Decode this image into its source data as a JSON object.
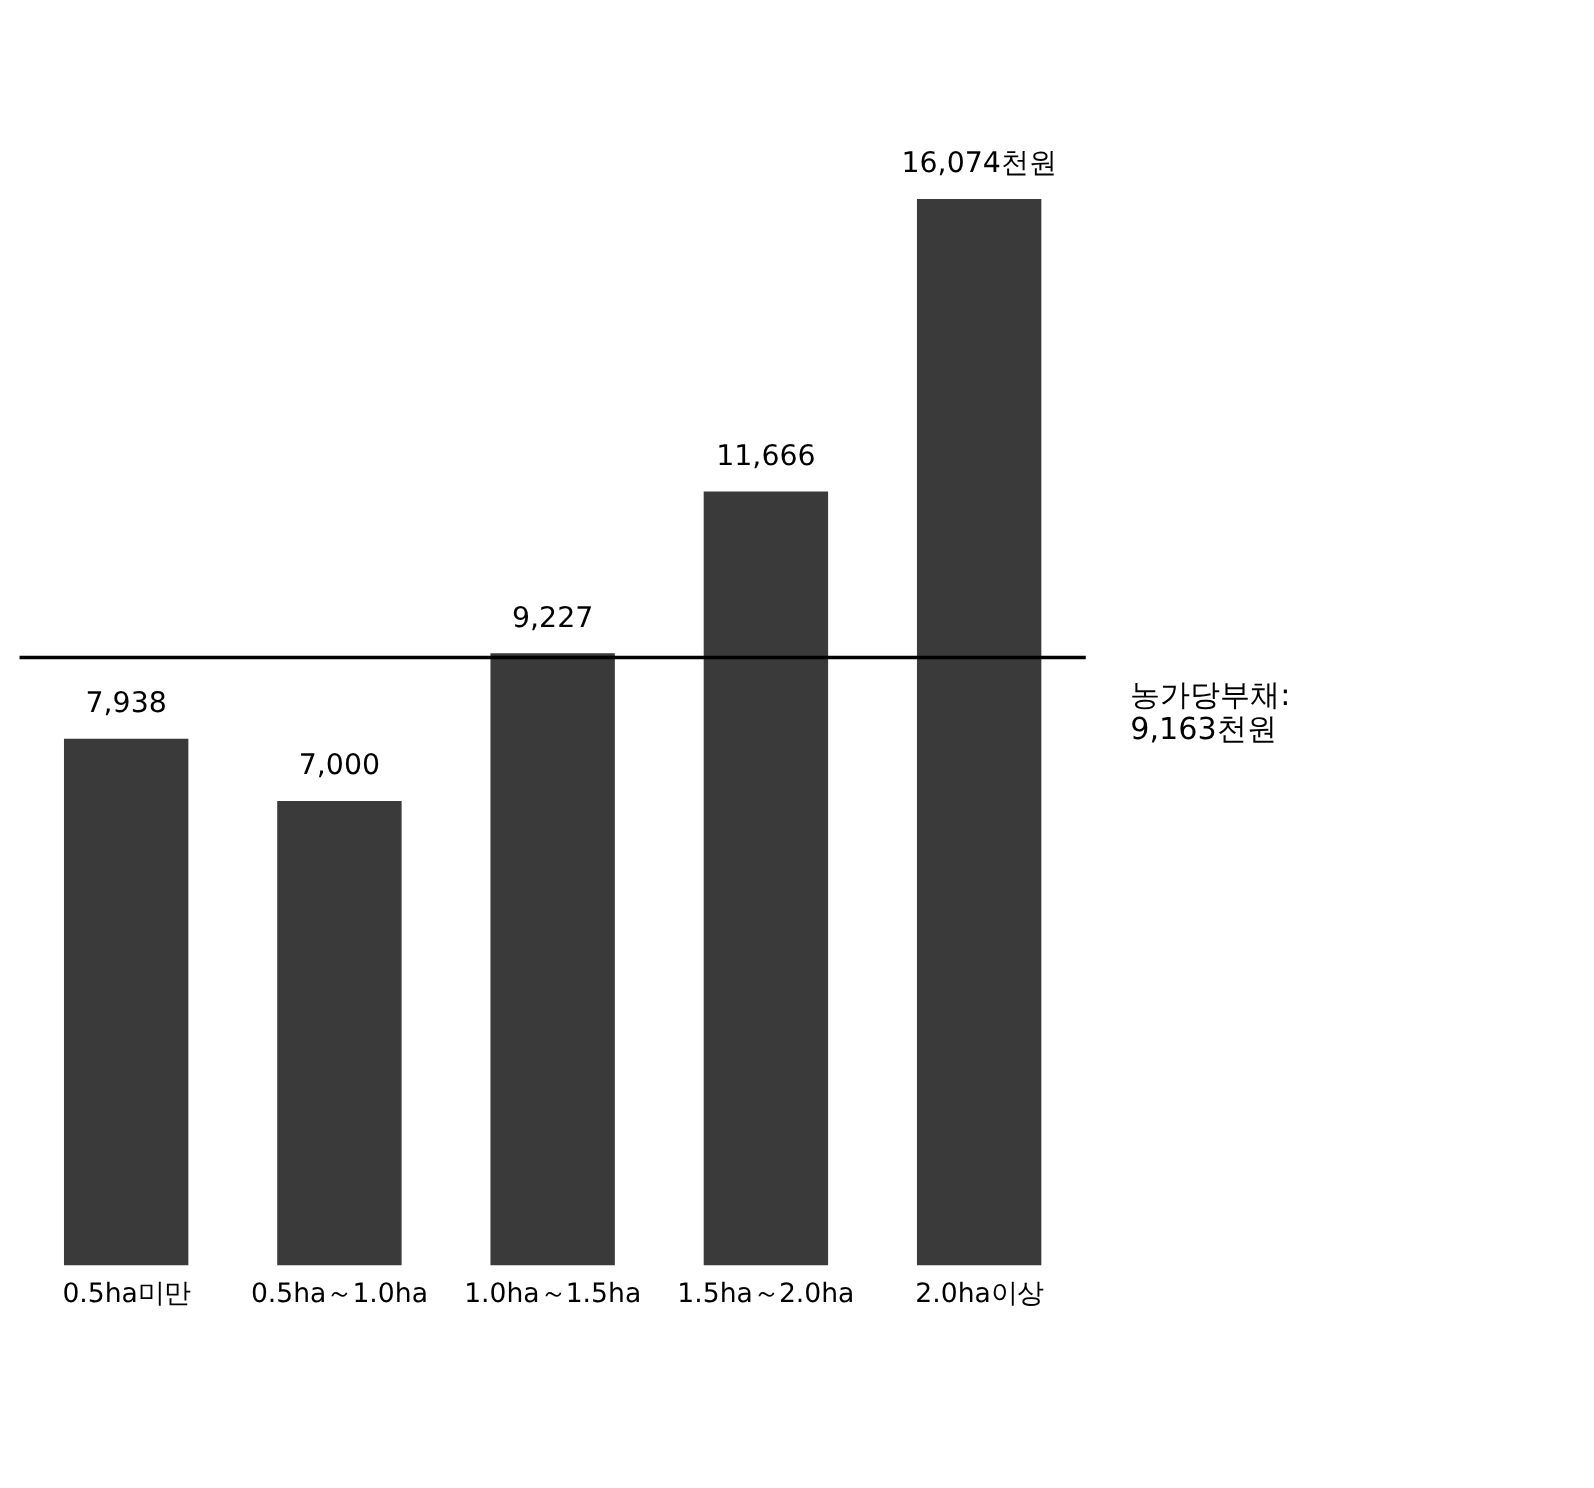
{
  "chart_data": {
    "type": "bar",
    "categories": [
      "0.5ha미만",
      "0.5ha～1.0ha",
      "1.0ha～1.5ha",
      "1.5ha～2.0ha",
      "2.0ha이상"
    ],
    "values": [
      7938,
      7000,
      9227,
      11666,
      16074
    ],
    "value_labels": [
      "7,938",
      "7,000",
      "9,227",
      "11,666",
      "16,074천원"
    ],
    "color": "#3a3a3a",
    "ref_lines": [
      {
        "axis": "y",
        "value": 9163,
        "label": "농가당부채:\n9,163천원",
        "color": "#000000"
      }
    ]
  }
}
